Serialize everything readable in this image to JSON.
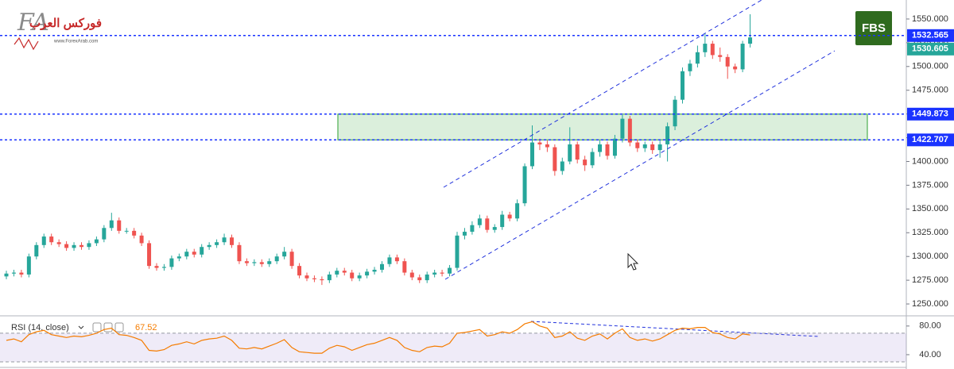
{
  "chart_data": [
    {
      "type": "candlestick",
      "open": [
        1279,
        1282,
        1283,
        1281,
        1300,
        1312,
        1321,
        1315,
        1313,
        1309,
        1312,
        1310,
        1314,
        1318,
        1330,
        1338,
        1327,
        1327,
        1322,
        1314,
        1290,
        1288,
        1289,
        1298,
        1300,
        1305,
        1302,
        1310,
        1312,
        1315,
        1320,
        1312,
        1295,
        1293,
        1294,
        1292,
        1295,
        1300,
        1305,
        1290,
        1280,
        1277,
        1276,
        1275,
        1281,
        1285,
        1283,
        1277,
        1280,
        1284,
        1286,
        1292,
        1299,
        1295,
        1283,
        1278,
        1275,
        1281,
        1283,
        1282,
        1288,
        1322,
        1326,
        1333,
        1340,
        1328,
        1331,
        1344,
        1340,
        1356,
        1395,
        1420,
        1418,
        1415,
        1390,
        1400,
        1418,
        1402,
        1396,
        1410,
        1418,
        1406,
        1424,
        1445,
        1420,
        1414,
        1418,
        1412,
        1418,
        1437,
        1465,
        1495,
        1503,
        1515,
        1524,
        1512,
        1510,
        1500,
        1497,
        1524
      ],
      "high": [
        1285,
        1286,
        1286,
        1303,
        1315,
        1324,
        1324,
        1318,
        1316,
        1315,
        1315,
        1317,
        1321,
        1333,
        1346,
        1341,
        1330,
        1330,
        1325,
        1317,
        1293,
        1292,
        1301,
        1303,
        1308,
        1308,
        1313,
        1315,
        1318,
        1324,
        1323,
        1315,
        1298,
        1297,
        1297,
        1298,
        1303,
        1310,
        1308,
        1293,
        1283,
        1280,
        1279,
        1284,
        1288,
        1288,
        1286,
        1283,
        1287,
        1289,
        1295,
        1302,
        1302,
        1298,
        1286,
        1281,
        1284,
        1286,
        1286,
        1291,
        1326,
        1330,
        1337,
        1344,
        1343,
        1334,
        1348,
        1347,
        1360,
        1398,
        1438,
        1424,
        1422,
        1418,
        1404,
        1436,
        1421,
        1406,
        1414,
        1422,
        1421,
        1428,
        1449,
        1448,
        1423,
        1421,
        1421,
        1422,
        1441,
        1469,
        1499,
        1507,
        1522,
        1535,
        1527,
        1520,
        1513,
        1503,
        1527,
        1555
      ],
      "low": [
        1276,
        1279,
        1278,
        1278,
        1297,
        1309,
        1312,
        1310,
        1306,
        1306,
        1307,
        1307,
        1311,
        1315,
        1327,
        1324,
        1324,
        1319,
        1311,
        1287,
        1285,
        1285,
        1286,
        1295,
        1297,
        1299,
        1299,
        1307,
        1309,
        1312,
        1309,
        1292,
        1290,
        1290,
        1289,
        1289,
        1292,
        1297,
        1287,
        1277,
        1274,
        1273,
        1270,
        1272,
        1278,
        1280,
        1274,
        1274,
        1277,
        1281,
        1283,
        1289,
        1292,
        1280,
        1275,
        1272,
        1272,
        1278,
        1279,
        1279,
        1285,
        1318,
        1323,
        1330,
        1325,
        1325,
        1328,
        1337,
        1337,
        1353,
        1392,
        1412,
        1410,
        1385,
        1386,
        1397,
        1398,
        1390,
        1393,
        1405,
        1402,
        1403,
        1420,
        1416,
        1410,
        1410,
        1408,
        1404,
        1400,
        1433,
        1461,
        1490,
        1499,
        1510,
        1508,
        1505,
        1487,
        1493,
        1494,
        1520
      ],
      "close": [
        1282,
        1283,
        1281,
        1300,
        1312,
        1321,
        1315,
        1313,
        1309,
        1312,
        1310,
        1314,
        1318,
        1330,
        1338,
        1327,
        1327,
        1322,
        1314,
        1290,
        1288,
        1289,
        1298,
        1300,
        1305,
        1302,
        1310,
        1312,
        1315,
        1320,
        1312,
        1295,
        1293,
        1294,
        1292,
        1295,
        1300,
        1305,
        1290,
        1280,
        1277,
        1276,
        1275,
        1281,
        1285,
        1283,
        1277,
        1280,
        1284,
        1286,
        1292,
        1299,
        1295,
        1283,
        1278,
        1275,
        1281,
        1283,
        1282,
        1288,
        1322,
        1326,
        1333,
        1340,
        1328,
        1331,
        1344,
        1340,
        1356,
        1395,
        1420,
        1418,
        1415,
        1390,
        1400,
        1418,
        1402,
        1396,
        1410,
        1418,
        1406,
        1424,
        1445,
        1420,
        1414,
        1418,
        1412,
        1418,
        1437,
        1465,
        1495,
        1503,
        1515,
        1524,
        1512,
        1510,
        1500,
        1497,
        1524,
        1530.605
      ],
      "up_color": "#26a69a",
      "down_color": "#ef5350",
      "last_color": "#26a69a",
      "ylim": [
        1237.5,
        1570
      ],
      "yticks": [
        {
          "value": 1250,
          "label": "1250.000"
        },
        {
          "value": 1275,
          "label": "1275.000"
        },
        {
          "value": 1300,
          "label": "1300.000"
        },
        {
          "value": 1325,
          "label": "1325.000"
        },
        {
          "value": 1350,
          "label": "1350.000"
        },
        {
          "value": 1375,
          "label": "1375.000"
        },
        {
          "value": 1400,
          "label": "1400.000"
        },
        {
          "value": 1425,
          "label": "1425.000"
        },
        {
          "value": 1450,
          "label": "1450.000"
        },
        {
          "value": 1475,
          "label": "1475.000"
        },
        {
          "value": 1500,
          "label": "1500.000"
        },
        {
          "value": 1525,
          "label": "1525.000"
        },
        {
          "value": 1550,
          "label": "1550.000"
        }
      ],
      "levels": [
        {
          "value": 1532.565,
          "color": "#1a33ff"
        },
        {
          "value": 1449.873,
          "color": "#1a33ff"
        },
        {
          "value": 1422.707,
          "color": "#1a33ff"
        }
      ],
      "zone_color": "#4caf50"
    },
    {
      "type": "line",
      "title": "RSI (14, close)",
      "values": [
        60,
        62,
        58,
        68,
        72,
        74,
        68,
        66,
        64,
        66,
        65,
        67,
        70,
        75,
        77,
        68,
        67,
        64,
        60,
        46,
        45,
        47,
        53,
        55,
        58,
        55,
        60,
        62,
        63,
        66,
        60,
        49,
        48,
        50,
        48,
        52,
        56,
        61,
        50,
        44,
        43,
        42,
        42,
        49,
        53,
        51,
        46,
        50,
        54,
        56,
        60,
        64,
        60,
        50,
        46,
        44,
        50,
        52,
        51,
        56,
        70,
        71,
        73,
        75,
        66,
        68,
        72,
        70,
        75,
        83,
        86,
        80,
        77,
        64,
        66,
        72,
        63,
        60,
        66,
        69,
        62,
        70,
        76,
        64,
        60,
        62,
        59,
        62,
        68,
        74,
        77,
        76,
        78,
        78,
        71,
        69,
        64,
        62,
        69,
        67.52
      ],
      "color": "#f57c00",
      "ylim": [
        20,
        92
      ],
      "yticks": [
        {
          "value": 40,
          "label": "40.00"
        },
        {
          "value": 80,
          "label": "80.00"
        }
      ],
      "band": [
        30,
        70
      ]
    }
  ],
  "logo": "FBS",
  "watermark": {
    "mark": "FA",
    "name": "فوركس العرب",
    "url": "www.ForexArab.com"
  }
}
